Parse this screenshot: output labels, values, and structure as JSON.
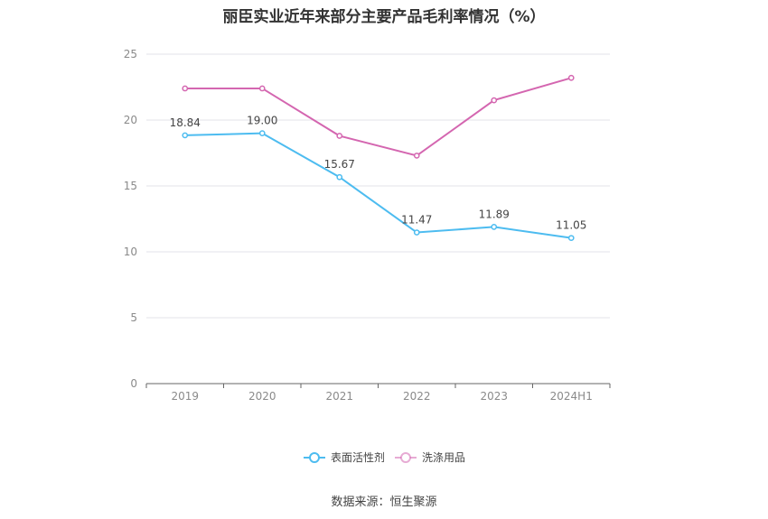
{
  "chart_data": {
    "type": "line",
    "title": "丽臣实业近年来部分主要产品毛利率情况（%）",
    "categories": [
      "2019",
      "2020",
      "2021",
      "2022",
      "2023",
      "2024H1"
    ],
    "ylim": [
      0,
      25
    ],
    "yticks": [
      0,
      5,
      10,
      15,
      20,
      25
    ],
    "grid": true,
    "legend_position": "bottom-center",
    "series": [
      {
        "name": "表面活性剂",
        "color": "#4dbcf0",
        "values": [
          18.84,
          19.0,
          15.67,
          11.47,
          11.89,
          11.05
        ],
        "labels": [
          "18.84",
          "19.00",
          "15.67",
          "11.47",
          "11.89",
          "11.05"
        ]
      },
      {
        "name": "洗涤用品",
        "color": "#d466b0",
        "values": [
          22.4,
          22.4,
          18.8,
          17.3,
          21.5,
          23.2
        ]
      }
    ]
  },
  "source": "数据来源：恒生聚源"
}
